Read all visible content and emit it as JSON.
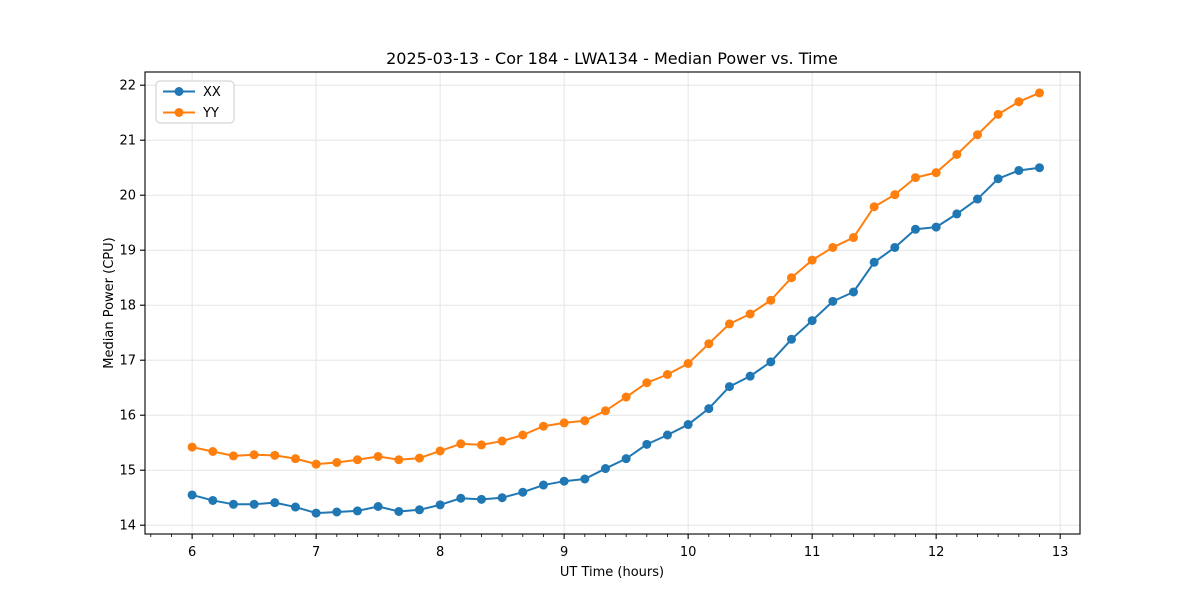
{
  "figure": {
    "title": "2025-03-13 - Cor 184 - LWA134 - Median Power vs. Time"
  },
  "chart_data": {
    "type": "line",
    "title": "2025-03-13 - Cor 184 - LWA134 - Median Power vs. Time",
    "xlabel": "UT Time (hours)",
    "ylabel": "Median Power (CPU)",
    "marker": "circle",
    "grid": true,
    "legend_position": "upper-left",
    "background_color": "#ffffff",
    "grid_color": "#e5e5e5",
    "spine_color": "#000000",
    "xlim": [
      5.62,
      13.16
    ],
    "ylim": [
      13.84,
      22.24
    ],
    "xticks": [
      6,
      7,
      8,
      9,
      10,
      11,
      12,
      13
    ],
    "yticks": [
      14,
      15,
      16,
      17,
      18,
      19,
      20,
      21,
      22
    ],
    "minor_xtick_step": 0.16667,
    "x": [
      6.0,
      6.1667,
      6.3333,
      6.5,
      6.6667,
      6.8333,
      7.0,
      7.1667,
      7.3333,
      7.5,
      7.6667,
      7.8333,
      8.0,
      8.1667,
      8.3333,
      8.5,
      8.6667,
      8.8333,
      9.0,
      9.1667,
      9.3333,
      9.5,
      9.6667,
      9.8333,
      10.0,
      10.1667,
      10.3333,
      10.5,
      10.6667,
      10.8333,
      11.0,
      11.1667,
      11.3333,
      11.5,
      11.6667,
      11.8333,
      12.0,
      12.1667,
      12.3333,
      12.5,
      12.6667,
      12.8333
    ],
    "series": [
      {
        "name": "XX",
        "color": "#1f77b4",
        "values": [
          14.55,
          14.45,
          14.38,
          14.38,
          14.41,
          14.33,
          14.22,
          14.24,
          14.26,
          14.34,
          14.25,
          14.28,
          14.37,
          14.49,
          14.47,
          14.5,
          14.6,
          14.73,
          14.8,
          14.84,
          15.03,
          15.21,
          15.47,
          15.64,
          15.83,
          16.12,
          16.52,
          16.71,
          16.97,
          17.38,
          17.72,
          18.07,
          18.24,
          18.78,
          19.05,
          19.38,
          19.42,
          19.66,
          19.93,
          20.3,
          20.45,
          20.5
        ]
      },
      {
        "name": "YY",
        "color": "#ff7f0e",
        "values": [
          15.42,
          15.34,
          15.26,
          15.28,
          15.27,
          15.21,
          15.11,
          15.14,
          15.19,
          15.25,
          15.19,
          15.22,
          15.35,
          15.48,
          15.46,
          15.53,
          15.64,
          15.8,
          15.86,
          15.9,
          16.08,
          16.33,
          16.59,
          16.74,
          16.94,
          17.3,
          17.66,
          17.84,
          18.09,
          18.5,
          18.82,
          19.05,
          19.23,
          19.79,
          20.01,
          20.32,
          20.41,
          20.74,
          21.1,
          21.47,
          21.7,
          21.86
        ]
      }
    ]
  }
}
